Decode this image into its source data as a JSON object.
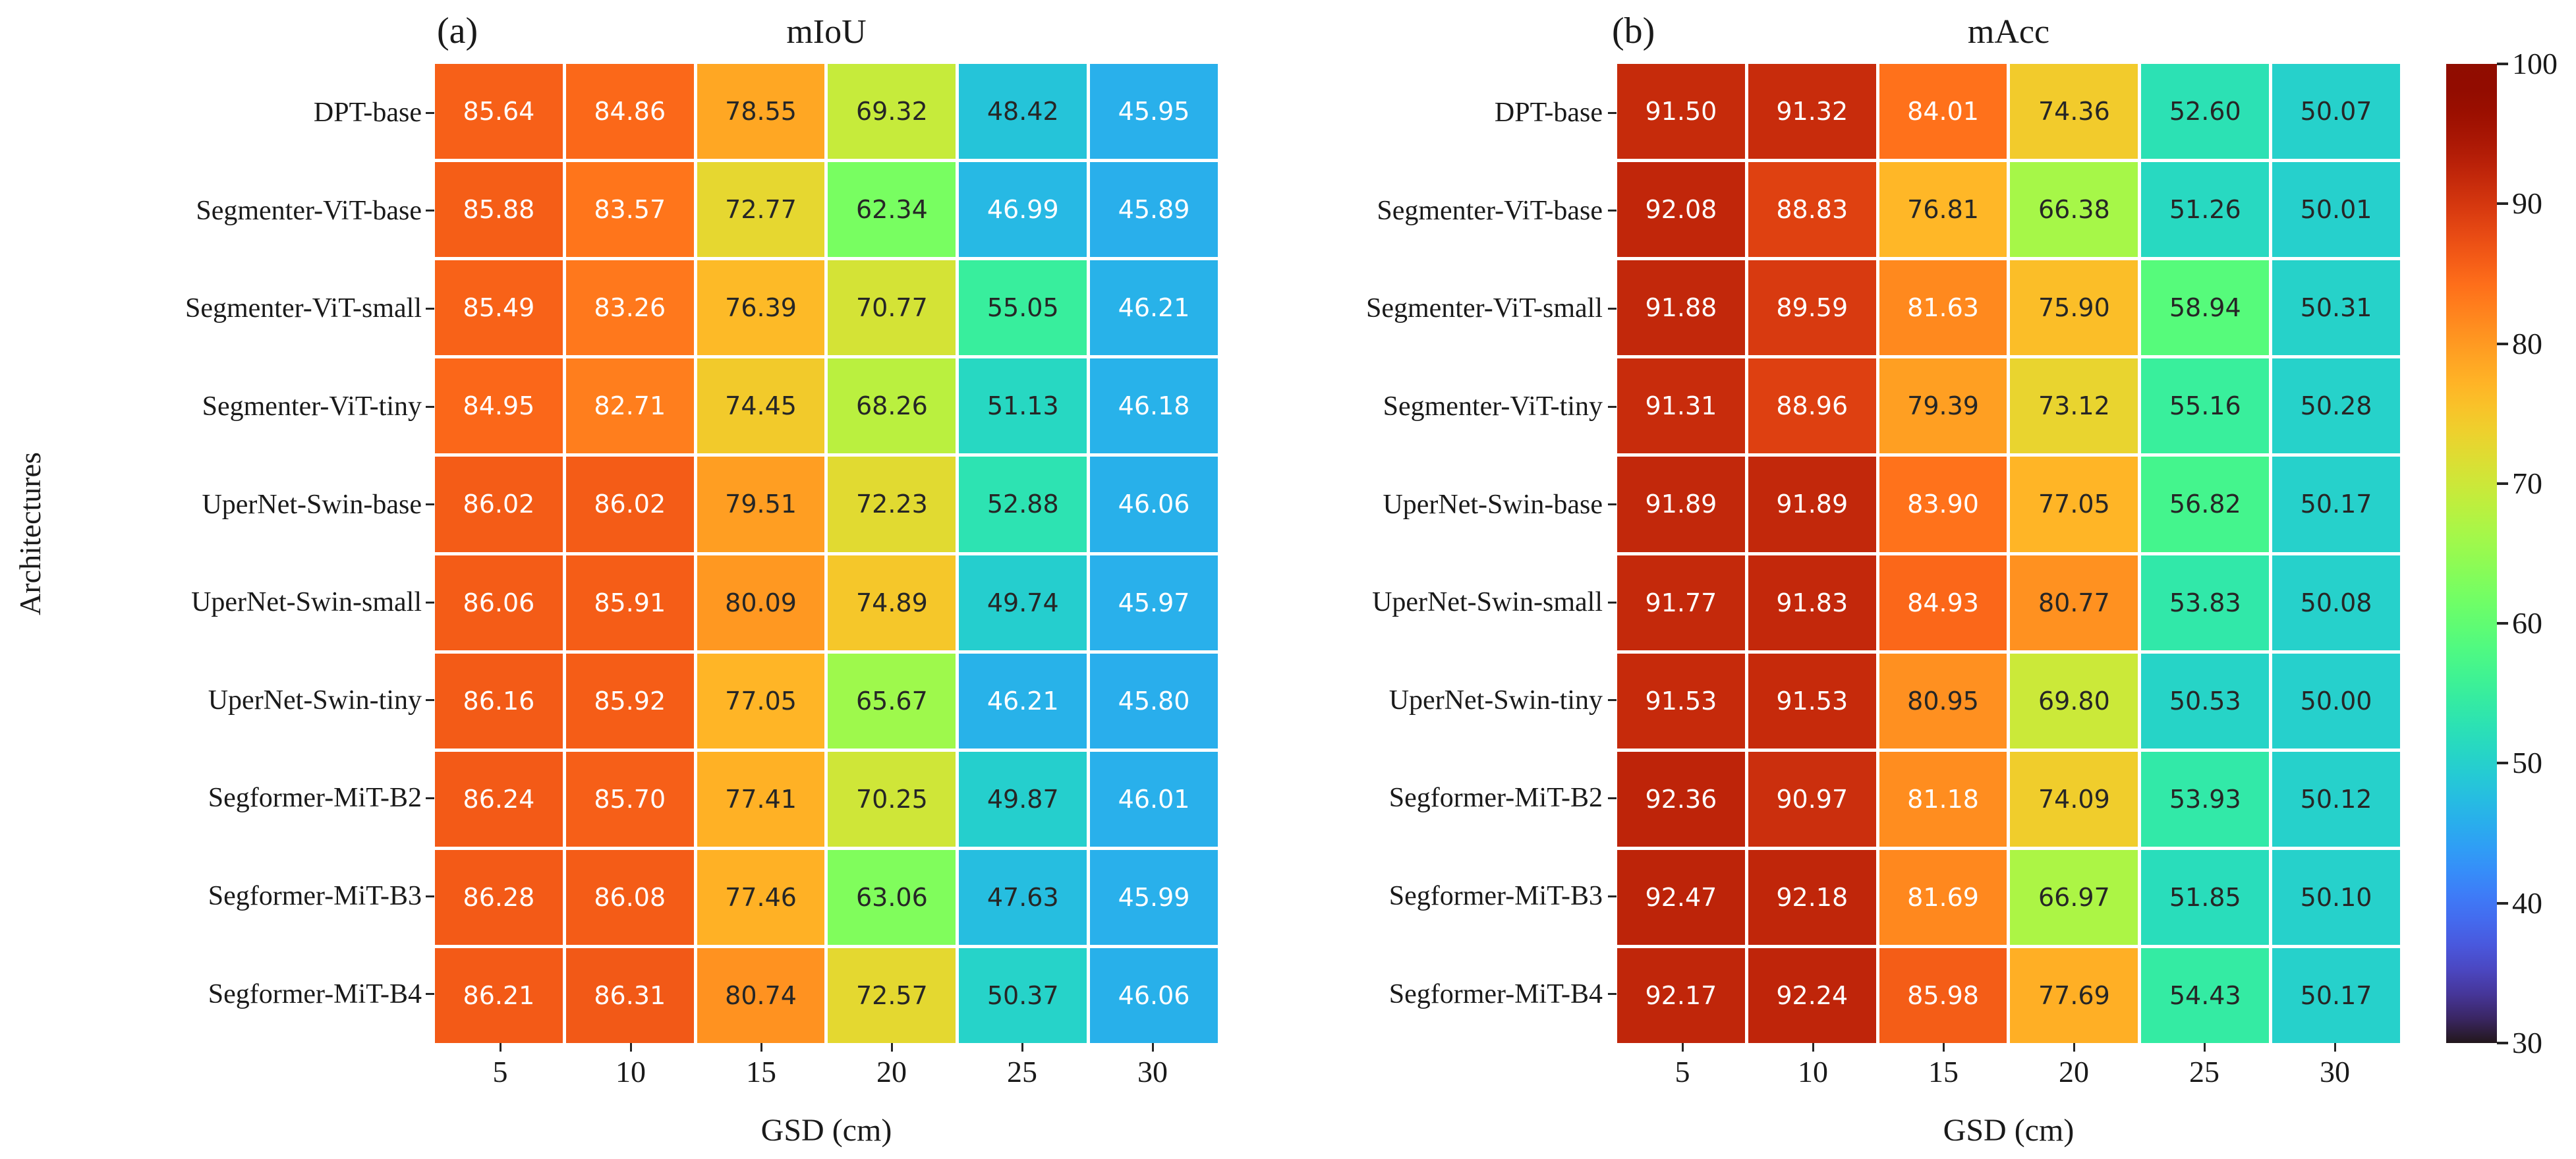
{
  "figure": {
    "background": "#ffffff",
    "ylabel": "Architectures",
    "annotation_text_colors": {
      "light": "#ffffff",
      "dark": "#262626"
    },
    "colorbar": {
      "vmin": 30,
      "vmax": 100,
      "colormap": "turbo",
      "ticks": [
        100,
        90,
        80,
        70,
        60,
        50,
        40,
        30
      ]
    }
  },
  "chart_data": [
    {
      "type": "heatmap",
      "panel_tag": "(a)",
      "title": "mIoU",
      "xlabel": "GSD (cm)",
      "ylabel": "Architectures",
      "colormap": "turbo",
      "vmin": 30,
      "vmax": 100,
      "x_ticks": [
        5,
        10,
        15,
        20,
        25,
        30
      ],
      "row_labels": [
        "DPT-base",
        "Segmenter-ViT-base",
        "Segmenter-ViT-small",
        "Segmenter-ViT-tiny",
        "UperNet-Swin-base",
        "UperNet-Swin-small",
        "UperNet-Swin-tiny",
        "Segformer-MiT-B2",
        "Segformer-MiT-B3",
        "Segformer-MiT-B4"
      ],
      "values": [
        [
          85.64,
          84.86,
          78.55,
          69.32,
          48.42,
          45.95
        ],
        [
          85.88,
          83.57,
          72.77,
          62.34,
          46.99,
          45.89
        ],
        [
          85.49,
          83.26,
          76.39,
          70.77,
          55.05,
          46.21
        ],
        [
          84.95,
          82.71,
          74.45,
          68.26,
          51.13,
          46.18
        ],
        [
          86.02,
          86.02,
          79.51,
          72.23,
          52.88,
          46.06
        ],
        [
          86.06,
          85.91,
          80.09,
          74.89,
          49.74,
          45.97
        ],
        [
          86.16,
          85.92,
          77.05,
          65.67,
          46.21,
          45.8
        ],
        [
          86.24,
          85.7,
          77.41,
          70.25,
          49.87,
          46.01
        ],
        [
          86.28,
          86.08,
          77.46,
          63.06,
          47.63,
          45.99
        ],
        [
          86.21,
          86.31,
          80.74,
          72.57,
          50.37,
          46.06
        ]
      ]
    },
    {
      "type": "heatmap",
      "panel_tag": "(b)",
      "title": "mAcc",
      "xlabel": "GSD (cm)",
      "ylabel": "Architectures",
      "colormap": "turbo",
      "vmin": 30,
      "vmax": 100,
      "x_ticks": [
        5,
        10,
        15,
        20,
        25,
        30
      ],
      "row_labels": [
        "DPT-base",
        "Segmenter-ViT-base",
        "Segmenter-ViT-small",
        "Segmenter-ViT-tiny",
        "UperNet-Swin-base",
        "UperNet-Swin-small",
        "UperNet-Swin-tiny",
        "Segformer-MiT-B2",
        "Segformer-MiT-B3",
        "Segformer-MiT-B4"
      ],
      "values": [
        [
          91.5,
          91.32,
          84.01,
          74.36,
          52.6,
          50.07
        ],
        [
          92.08,
          88.83,
          76.81,
          66.38,
          51.26,
          50.01
        ],
        [
          91.88,
          89.59,
          81.63,
          75.9,
          58.94,
          50.31
        ],
        [
          91.31,
          88.96,
          79.39,
          73.12,
          55.16,
          50.28
        ],
        [
          91.89,
          91.89,
          83.9,
          77.05,
          56.82,
          50.17
        ],
        [
          91.77,
          91.83,
          84.93,
          80.77,
          53.83,
          50.08
        ],
        [
          91.53,
          91.53,
          80.95,
          69.8,
          50.53,
          50.0
        ],
        [
          92.36,
          90.97,
          81.18,
          74.09,
          53.93,
          50.12
        ],
        [
          92.47,
          92.18,
          81.69,
          66.97,
          51.85,
          50.1
        ],
        [
          92.17,
          92.24,
          85.98,
          77.69,
          54.43,
          50.17
        ]
      ]
    }
  ]
}
